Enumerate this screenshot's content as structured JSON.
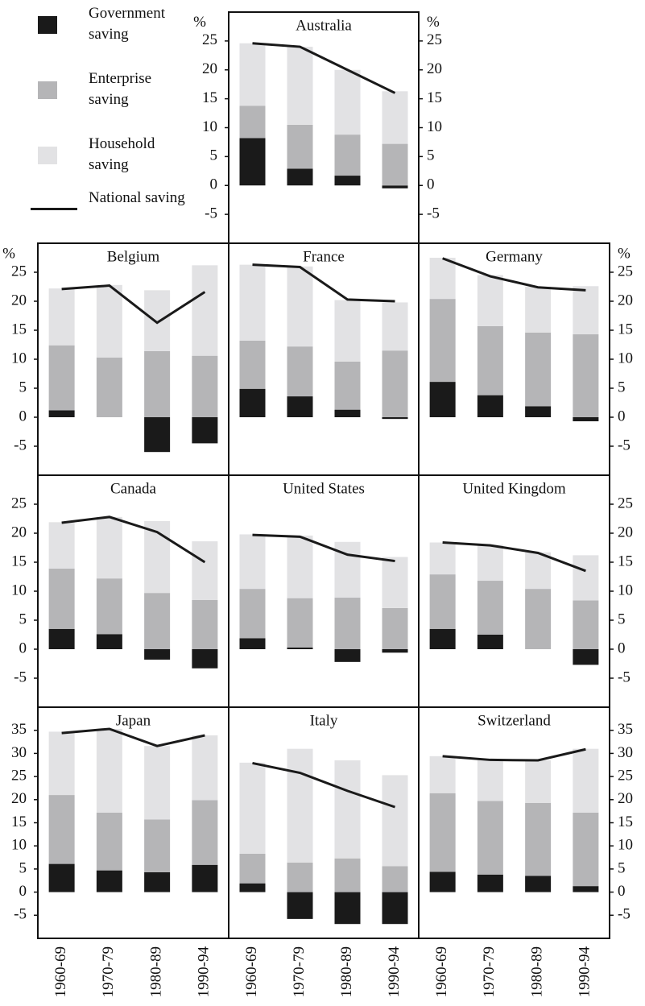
{
  "chart_data": [
    {
      "type": "bar",
      "title": "Australia",
      "categories": [
        "1960-69",
        "1970-79",
        "1980-89",
        "1990-94"
      ],
      "ylim": [
        -10,
        30
      ],
      "yticks": [
        -5,
        0,
        5,
        10,
        15,
        20,
        25
      ],
      "ylabel": "%",
      "ytick_sides": [
        "left",
        "right"
      ],
      "show_categories": false,
      "series": [
        {
          "name": "Government saving",
          "color": "#1a1a1a",
          "values": [
            8.2,
            2.9,
            1.7,
            -0.5
          ]
        },
        {
          "name": "Enterprise saving",
          "color": "#b5b5b7",
          "values": [
            5.6,
            7.6,
            7.1,
            7.2
          ]
        },
        {
          "name": "Household saving",
          "color": "#e2e2e4",
          "values": [
            10.8,
            13.5,
            11.2,
            9.1
          ]
        },
        {
          "name": "National saving",
          "color": "#1a1a1a",
          "type": "line",
          "values": [
            24.6,
            24,
            20,
            16
          ]
        }
      ]
    },
    {
      "type": "bar",
      "title": "Belgium",
      "categories": [
        "1960-69",
        "1970-79",
        "1980-89",
        "1990-94"
      ],
      "ylim": [
        -10,
        30
      ],
      "yticks": [
        -5,
        0,
        5,
        10,
        15,
        20,
        25
      ],
      "ylabel": "%",
      "ytick_sides": [
        "left"
      ],
      "show_categories": false,
      "series": [
        {
          "name": "Government saving",
          "color": "#1a1a1a",
          "values": [
            1.2,
            0,
            -6,
            -4.5
          ]
        },
        {
          "name": "Enterprise saving",
          "color": "#b5b5b7",
          "values": [
            11.2,
            10.3,
            11.4,
            10.6
          ]
        },
        {
          "name": "Household saving",
          "color": "#e2e2e4",
          "values": [
            9.8,
            12.5,
            10.5,
            15.6
          ]
        },
        {
          "name": "National saving",
          "color": "#1a1a1a",
          "type": "line",
          "values": [
            22.1,
            22.7,
            16.3,
            21.6
          ]
        }
      ]
    },
    {
      "type": "bar",
      "title": "France",
      "categories": [
        "1960-69",
        "1970-79",
        "1980-89",
        "1990-94"
      ],
      "ylim": [
        -10,
        30
      ],
      "yticks": [
        -5,
        0,
        5,
        10,
        15,
        20,
        25
      ],
      "ytick_sides": [],
      "show_categories": false,
      "series": [
        {
          "name": "Government saving",
          "color": "#1a1a1a",
          "values": [
            4.9,
            3.6,
            1.3,
            -0.3
          ]
        },
        {
          "name": "Enterprise saving",
          "color": "#b5b5b7",
          "values": [
            8.3,
            8.6,
            8.3,
            11.5
          ]
        },
        {
          "name": "Household saving",
          "color": "#e2e2e4",
          "values": [
            13.1,
            13.8,
            10.6,
            8.3
          ]
        },
        {
          "name": "National saving",
          "color": "#1a1a1a",
          "type": "line",
          "values": [
            26.3,
            25.9,
            20.3,
            20
          ]
        }
      ]
    },
    {
      "type": "bar",
      "title": "Germany",
      "categories": [
        "1960-69",
        "1970-79",
        "1980-89",
        "1990-94"
      ],
      "ylim": [
        -10,
        30
      ],
      "yticks": [
        -5,
        0,
        5,
        10,
        15,
        20,
        25
      ],
      "ylabel": "%",
      "ytick_sides": [
        "right"
      ],
      "show_categories": false,
      "series": [
        {
          "name": "Government saving",
          "color": "#1a1a1a",
          "values": [
            6.1,
            3.8,
            1.9,
            -0.7
          ]
        },
        {
          "name": "Enterprise saving",
          "color": "#b5b5b7",
          "values": [
            14.3,
            11.9,
            12.7,
            14.3
          ]
        },
        {
          "name": "Household saving",
          "color": "#e2e2e4",
          "values": [
            7.1,
            8.8,
            7.9,
            8.3
          ]
        },
        {
          "name": "National saving",
          "color": "#1a1a1a",
          "type": "line",
          "values": [
            27.4,
            24.3,
            22.4,
            21.9
          ]
        }
      ]
    },
    {
      "type": "bar",
      "title": "Canada",
      "categories": [
        "1960-69",
        "1970-79",
        "1980-89",
        "1990-94"
      ],
      "ylim": [
        -10,
        30
      ],
      "yticks": [
        -5,
        0,
        5,
        10,
        15,
        20,
        25
      ],
      "ytick_sides": [
        "left"
      ],
      "show_categories": false,
      "series": [
        {
          "name": "Government saving",
          "color": "#1a1a1a",
          "values": [
            3.5,
            2.6,
            -1.8,
            -3.3
          ]
        },
        {
          "name": "Enterprise saving",
          "color": "#b5b5b7",
          "values": [
            10.4,
            9.6,
            9.7,
            8.5
          ]
        },
        {
          "name": "Household saving",
          "color": "#e2e2e4",
          "values": [
            8,
            10.6,
            12.4,
            10.1
          ]
        },
        {
          "name": "National saving",
          "color": "#1a1a1a",
          "type": "line",
          "values": [
            21.8,
            22.8,
            20.2,
            15
          ]
        }
      ]
    },
    {
      "type": "bar",
      "title": "United States",
      "categories": [
        "1960-69",
        "1970-79",
        "1980-89",
        "1990-94"
      ],
      "ylim": [
        -10,
        30
      ],
      "yticks": [
        -5,
        0,
        5,
        10,
        15,
        20,
        25
      ],
      "ytick_sides": [],
      "show_categories": false,
      "series": [
        {
          "name": "Government saving",
          "color": "#1a1a1a",
          "values": [
            1.9,
            0.3,
            -2.2,
            -0.6
          ]
        },
        {
          "name": "Enterprise saving",
          "color": "#b5b5b7",
          "values": [
            8.5,
            8.5,
            8.9,
            7.1
          ]
        },
        {
          "name": "Household saving",
          "color": "#e2e2e4",
          "values": [
            9.4,
            10.8,
            9.6,
            8.8
          ]
        },
        {
          "name": "National saving",
          "color": "#1a1a1a",
          "type": "line",
          "values": [
            19.7,
            19.4,
            16.3,
            15.2
          ]
        }
      ]
    },
    {
      "type": "bar",
      "title": "United Kingdom",
      "categories": [
        "1960-69",
        "1970-79",
        "1980-89",
        "1990-94"
      ],
      "ylim": [
        -10,
        30
      ],
      "yticks": [
        -5,
        0,
        5,
        10,
        15,
        20,
        25
      ],
      "ytick_sides": [
        "right"
      ],
      "show_categories": false,
      "series": [
        {
          "name": "Government saving",
          "color": "#1a1a1a",
          "values": [
            3.5,
            2.5,
            0,
            -2.7
          ]
        },
        {
          "name": "Enterprise saving",
          "color": "#b5b5b7",
          "values": [
            9.4,
            9.3,
            10.4,
            8.4
          ]
        },
        {
          "name": "Household saving",
          "color": "#e2e2e4",
          "values": [
            5.5,
            6.2,
            6.3,
            7.8
          ]
        },
        {
          "name": "National saving",
          "color": "#1a1a1a",
          "type": "line",
          "values": [
            18.4,
            17.9,
            16.6,
            13.5
          ]
        }
      ]
    },
    {
      "type": "bar",
      "title": "Japan",
      "categories": [
        "1960-69",
        "1970-79",
        "1980-89",
        "1990-94"
      ],
      "ylim": [
        -10,
        40
      ],
      "yticks": [
        -5,
        0,
        5,
        10,
        15,
        20,
        25,
        30,
        35
      ],
      "ytick_sides": [
        "left"
      ],
      "show_categories": true,
      "series": [
        {
          "name": "Government saving",
          "color": "#1a1a1a",
          "values": [
            6.1,
            4.7,
            4.3,
            5.9
          ]
        },
        {
          "name": "Enterprise saving",
          "color": "#b5b5b7",
          "values": [
            14.9,
            12.5,
            11.4,
            14
          ]
        },
        {
          "name": "Household saving",
          "color": "#e2e2e4",
          "values": [
            13.7,
            18.1,
            15.9,
            14
          ]
        },
        {
          "name": "National saving",
          "color": "#1a1a1a",
          "type": "line",
          "values": [
            34.4,
            35.3,
            31.6,
            33.9
          ]
        }
      ]
    },
    {
      "type": "bar",
      "title": "Italy",
      "categories": [
        "1960-69",
        "1970-79",
        "1980-89",
        "1990-94"
      ],
      "ylim": [
        -10,
        40
      ],
      "yticks": [
        -5,
        0,
        5,
        10,
        15,
        20,
        25,
        30,
        35
      ],
      "ytick_sides": [],
      "show_categories": true,
      "series": [
        {
          "name": "Government saving",
          "color": "#1a1a1a",
          "values": [
            1.9,
            -5.8,
            -6.9,
            -6.9
          ]
        },
        {
          "name": "Enterprise saving",
          "color": "#b5b5b7",
          "values": [
            6.4,
            6.4,
            7.3,
            5.6
          ]
        },
        {
          "name": "Household saving",
          "color": "#e2e2e4",
          "values": [
            19.7,
            24.6,
            21.2,
            19.7
          ]
        },
        {
          "name": "National saving",
          "color": "#1a1a1a",
          "type": "line",
          "values": [
            27.9,
            25.8,
            21.9,
            18.4
          ]
        }
      ]
    },
    {
      "type": "bar",
      "title": "Switzerland",
      "categories": [
        "1960-69",
        "1970-79",
        "1980-89",
        "1990-94"
      ],
      "ylim": [
        -10,
        40
      ],
      "yticks": [
        -5,
        0,
        5,
        10,
        15,
        20,
        25,
        30,
        35
      ],
      "ytick_sides": [
        "right"
      ],
      "show_categories": true,
      "series": [
        {
          "name": "Government saving",
          "color": "#1a1a1a",
          "values": [
            4.4,
            3.8,
            3.5,
            1.3
          ]
        },
        {
          "name": "Enterprise saving",
          "color": "#b5b5b7",
          "values": [
            17,
            15.9,
            15.8,
            15.9
          ]
        },
        {
          "name": "Household saving",
          "color": "#e2e2e4",
          "values": [
            8,
            8.9,
            9.2,
            13.8
          ]
        },
        {
          "name": "National saving",
          "color": "#1a1a1a",
          "type": "line",
          "values": [
            29.4,
            28.6,
            28.5,
            30.9
          ]
        }
      ]
    }
  ]
}
